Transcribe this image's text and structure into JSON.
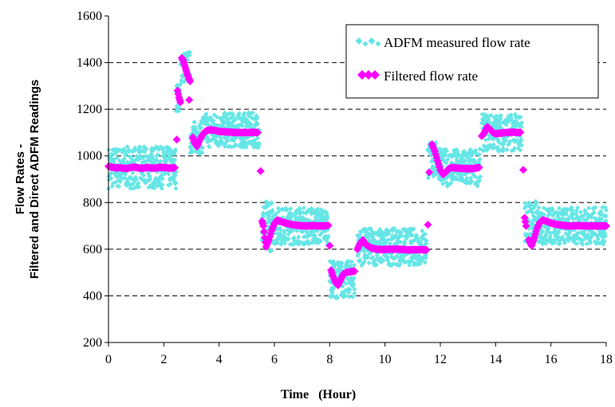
{
  "chart_data": {
    "type": "scatter",
    "title": "",
    "xlabel": "Time   (Hour)",
    "ylabel_lines": [
      "Flow Rates -",
      "Filtered and Direct ADFM Readings"
    ],
    "xlim": [
      0,
      18
    ],
    "ylim": [
      200,
      1600
    ],
    "x_ticks": [
      0,
      2,
      4,
      6,
      8,
      10,
      12,
      14,
      16,
      18
    ],
    "y_ticks": [
      200,
      400,
      600,
      800,
      1000,
      1200,
      1400,
      1600
    ],
    "grid": "horizontal dashed",
    "legend_position": "top-right",
    "series": [
      {
        "name": "ADFM measured flow rate",
        "marker": "diamond",
        "color": "#66e6e6",
        "segments": [
          {
            "x_start": 0.0,
            "x_end": 2.45,
            "level": 950,
            "band": 90
          },
          {
            "x_start": 2.45,
            "x_end": 2.6,
            "level": 1250,
            "band": 60
          },
          {
            "x_start": 2.6,
            "x_end": 2.95,
            "level": 1380,
            "band": 70
          },
          {
            "x_start": 2.95,
            "x_end": 3.4,
            "level": 1080,
            "band": 70
          },
          {
            "x_start": 3.4,
            "x_end": 5.45,
            "level": 1110,
            "band": 75
          },
          {
            "x_start": 5.55,
            "x_end": 5.9,
            "level": 700,
            "band": 110
          },
          {
            "x_start": 5.9,
            "x_end": 7.95,
            "level": 700,
            "band": 80
          },
          {
            "x_start": 8.0,
            "x_end": 8.9,
            "level": 470,
            "band": 80
          },
          {
            "x_start": 9.0,
            "x_end": 11.5,
            "level": 610,
            "band": 80
          },
          {
            "x_start": 11.55,
            "x_end": 12.0,
            "level": 980,
            "band": 80
          },
          {
            "x_start": 12.0,
            "x_end": 13.45,
            "level": 950,
            "band": 80
          },
          {
            "x_start": 13.5,
            "x_end": 14.95,
            "level": 1100,
            "band": 80
          },
          {
            "x_start": 15.05,
            "x_end": 15.5,
            "level": 720,
            "band": 90
          },
          {
            "x_start": 15.5,
            "x_end": 18.0,
            "level": 700,
            "band": 80
          }
        ]
      },
      {
        "name": "Filtered flow rate",
        "marker": "diamond",
        "color": "#ff00ff",
        "points": [
          [
            0.0,
            955
          ],
          [
            0.1,
            952
          ],
          [
            0.2,
            950
          ],
          [
            0.3,
            948
          ],
          [
            0.4,
            950
          ],
          [
            0.5,
            948
          ],
          [
            0.6,
            946
          ],
          [
            0.7,
            947
          ],
          [
            0.8,
            950
          ],
          [
            0.9,
            952
          ],
          [
            1.0,
            950
          ],
          [
            1.1,
            948
          ],
          [
            1.2,
            947
          ],
          [
            1.3,
            948
          ],
          [
            1.4,
            950
          ],
          [
            1.5,
            949
          ],
          [
            1.6,
            947
          ],
          [
            1.7,
            948
          ],
          [
            1.8,
            950
          ],
          [
            1.9,
            951
          ],
          [
            2.0,
            950
          ],
          [
            2.1,
            949
          ],
          [
            2.2,
            948
          ],
          [
            2.3,
            948
          ],
          [
            2.4,
            949
          ],
          [
            2.47,
            1070
          ],
          [
            2.5,
            1280
          ],
          [
            2.55,
            1250
          ],
          [
            2.6,
            1230
          ],
          [
            2.65,
            1420
          ],
          [
            2.7,
            1410
          ],
          [
            2.75,
            1390
          ],
          [
            2.8,
            1370
          ],
          [
            2.85,
            1350
          ],
          [
            2.9,
            1335
          ],
          [
            2.95,
            1320
          ],
          [
            2.92,
            1240
          ],
          [
            3.05,
            1080
          ],
          [
            3.1,
            1060
          ],
          [
            3.2,
            1040
          ],
          [
            3.3,
            1070
          ],
          [
            3.4,
            1090
          ],
          [
            3.5,
            1105
          ],
          [
            3.6,
            1110
          ],
          [
            3.7,
            1112
          ],
          [
            3.8,
            1110
          ],
          [
            3.9,
            1108
          ],
          [
            4.0,
            1105
          ],
          [
            4.2,
            1103
          ],
          [
            4.4,
            1102
          ],
          [
            4.6,
            1100
          ],
          [
            4.8,
            1100
          ],
          [
            5.0,
            1100
          ],
          [
            5.2,
            1101
          ],
          [
            5.4,
            1100
          ],
          [
            5.5,
            935
          ],
          [
            5.55,
            720
          ],
          [
            5.6,
            700
          ],
          [
            5.65,
            650
          ],
          [
            5.7,
            610
          ],
          [
            5.8,
            640
          ],
          [
            5.9,
            680
          ],
          [
            6.0,
            710
          ],
          [
            6.1,
            725
          ],
          [
            6.2,
            720
          ],
          [
            6.4,
            712
          ],
          [
            6.6,
            706
          ],
          [
            6.8,
            703
          ],
          [
            7.0,
            700
          ],
          [
            7.2,
            700
          ],
          [
            7.4,
            701
          ],
          [
            7.6,
            700
          ],
          [
            7.8,
            700
          ],
          [
            7.95,
            702
          ],
          [
            8.0,
            615
          ],
          [
            8.05,
            510
          ],
          [
            8.1,
            490
          ],
          [
            8.2,
            460
          ],
          [
            8.3,
            445
          ],
          [
            8.4,
            470
          ],
          [
            8.5,
            495
          ],
          [
            8.6,
            500
          ],
          [
            8.7,
            502
          ],
          [
            8.8,
            505
          ],
          [
            8.9,
            505
          ],
          [
            9.0,
            600
          ],
          [
            9.1,
            625
          ],
          [
            9.2,
            640
          ],
          [
            9.3,
            620
          ],
          [
            9.5,
            605
          ],
          [
            9.7,
            600
          ],
          [
            9.9,
            598
          ],
          [
            10.1,
            600
          ],
          [
            10.3,
            600
          ],
          [
            10.5,
            600
          ],
          [
            10.7,
            598
          ],
          [
            10.9,
            597
          ],
          [
            11.1,
            598
          ],
          [
            11.3,
            598
          ],
          [
            11.5,
            597
          ],
          [
            11.55,
            705
          ],
          [
            11.6,
            930
          ],
          [
            11.7,
            1050
          ],
          [
            11.8,
            1020
          ],
          [
            11.9,
            980
          ],
          [
            12.0,
            940
          ],
          [
            12.1,
            920
          ],
          [
            12.2,
            930
          ],
          [
            12.3,
            945
          ],
          [
            12.4,
            950
          ],
          [
            12.6,
            948
          ],
          [
            12.8,
            946
          ],
          [
            13.0,
            945
          ],
          [
            13.2,
            946
          ],
          [
            13.4,
            950
          ],
          [
            13.5,
            1085
          ],
          [
            13.6,
            1100
          ],
          [
            13.7,
            1125
          ],
          [
            13.8,
            1115
          ],
          [
            13.9,
            1100
          ],
          [
            14.0,
            1095
          ],
          [
            14.2,
            1098
          ],
          [
            14.4,
            1100
          ],
          [
            14.6,
            1102
          ],
          [
            14.8,
            1100
          ],
          [
            14.9,
            1101
          ],
          [
            15.0,
            940
          ],
          [
            15.05,
            735
          ],
          [
            15.1,
            700
          ],
          [
            15.2,
            640
          ],
          [
            15.3,
            615
          ],
          [
            15.4,
            650
          ],
          [
            15.5,
            690
          ],
          [
            15.6,
            715
          ],
          [
            15.7,
            725
          ],
          [
            15.8,
            722
          ],
          [
            16.0,
            712
          ],
          [
            16.2,
            706
          ],
          [
            16.4,
            703
          ],
          [
            16.6,
            700
          ],
          [
            16.8,
            700
          ],
          [
            17.0,
            701
          ],
          [
            17.2,
            700
          ],
          [
            17.4,
            700
          ],
          [
            17.6,
            700
          ],
          [
            17.8,
            700
          ],
          [
            18.0,
            700
          ]
        ]
      }
    ]
  }
}
